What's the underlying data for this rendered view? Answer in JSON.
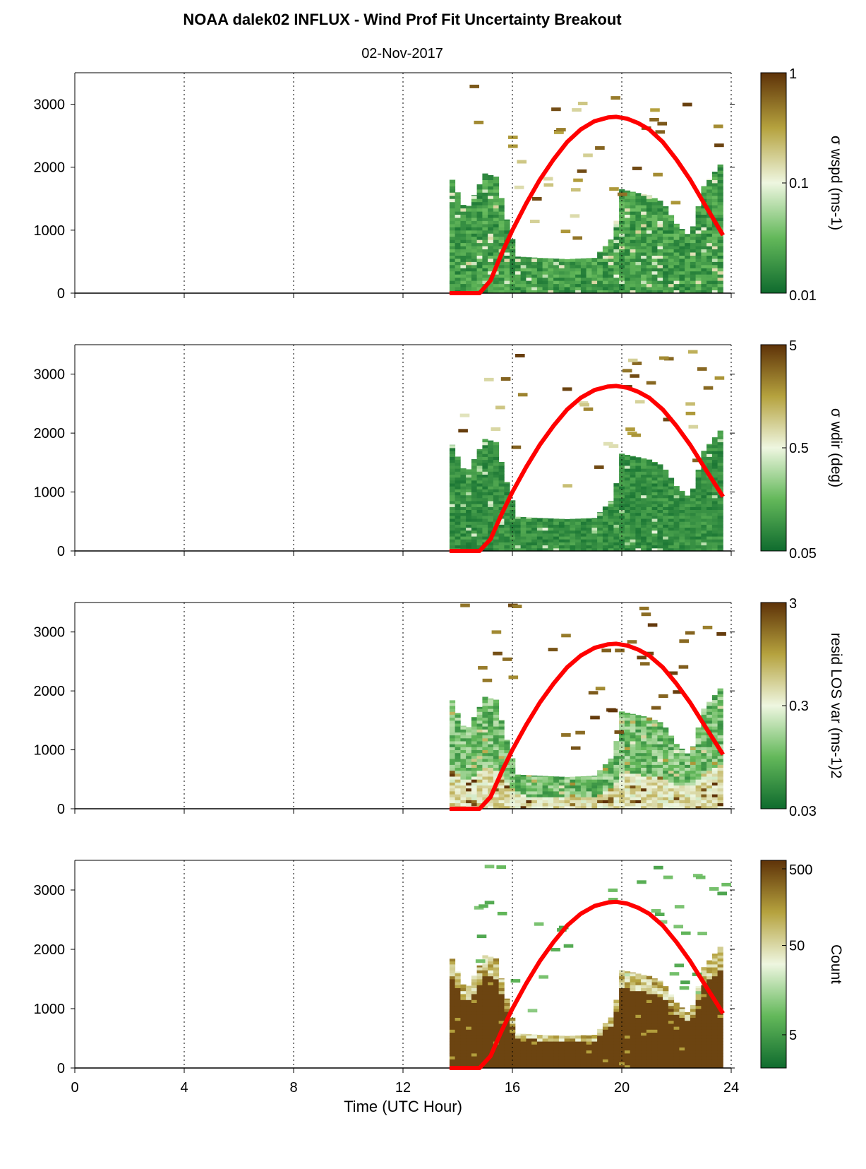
{
  "title": "NOAA dalek02 INFLUX - Wind Prof Fit Uncertainty Breakout",
  "subtitle": "02-Nov-2017",
  "colors": {
    "boundary_line": "#ff0000",
    "cmap_low": "#0f6b2e",
    "cmap_mid_low": "#63b85a",
    "cmap_mid": "#eef6e0",
    "cmap_mid_high": "#b5a23e",
    "cmap_high": "#5e3208"
  },
  "chart_data": {
    "type": "heatmap",
    "shared_x": {
      "label": "Time (UTC Hour)",
      "range": [
        0,
        24
      ],
      "ticks": [
        "0",
        "4",
        "8",
        "12",
        "16",
        "20",
        "24"
      ],
      "grid_lines_at": [
        4,
        8,
        12,
        16,
        20,
        24
      ],
      "grid": "dotted vertical"
    },
    "shared_y": {
      "range": [
        0,
        3500
      ],
      "ticks": [
        "0",
        "1000",
        "2000",
        "3000"
      ]
    },
    "data_start_hour": 13.7,
    "data_end_hour": 23.7,
    "boundary_line": {
      "description": "red curve",
      "x": [
        13.7,
        14.5,
        14.8,
        15.2,
        15.6,
        16.0,
        16.5,
        17.0,
        17.5,
        18.0,
        18.5,
        19.0,
        19.5,
        19.8,
        20.2,
        20.6,
        21.0,
        21.5,
        22.0,
        22.5,
        23.0,
        23.4,
        23.7
      ],
      "y": [
        0,
        0,
        0,
        200,
        620,
        1000,
        1420,
        1800,
        2120,
        2400,
        2600,
        2730,
        2790,
        2800,
        2770,
        2700,
        2600,
        2400,
        2120,
        1800,
        1430,
        1140,
        920
      ]
    },
    "panels": [
      {
        "colorbar_label": "σ wspd (ms-1)",
        "colorbar_scale": "log",
        "colorbar_ticks": [
          "1",
          "0.1",
          "0.01"
        ],
        "colorbar_range": [
          0.01,
          1
        ],
        "mixed_layer_x": [
          13.7,
          14.3,
          15.0,
          15.4,
          15.9,
          16.2,
          17.0,
          18.0,
          19.0,
          19.7,
          20.0,
          20.5,
          21.0,
          21.5,
          22.0,
          22.5,
          23.0,
          23.7
        ],
        "mixed_layer_top": [
          1900,
          1300,
          1900,
          1850,
          1000,
          580,
          560,
          540,
          560,
          900,
          1650,
          1600,
          1550,
          1450,
          1100,
          900,
          1700,
          2100
        ]
      },
      {
        "colorbar_label": "σ wdir (deg)",
        "colorbar_scale": "log",
        "colorbar_ticks": [
          "5",
          "0.5",
          "0.05"
        ],
        "colorbar_range": [
          0.05,
          5
        ],
        "mixed_layer_x": [
          13.7,
          14.3,
          15.0,
          15.4,
          15.9,
          16.2,
          17.0,
          18.0,
          19.0,
          19.7,
          20.0,
          20.5,
          21.0,
          21.5,
          22.0,
          22.5,
          23.0,
          23.7
        ],
        "mixed_layer_top": [
          1900,
          1300,
          1900,
          1850,
          1000,
          580,
          560,
          540,
          560,
          900,
          1650,
          1600,
          1550,
          1450,
          1100,
          900,
          1700,
          2100
        ]
      },
      {
        "colorbar_label": "resid LOS var (ms-1)2",
        "colorbar_scale": "log",
        "colorbar_ticks": [
          "3",
          "0.3",
          "0.03"
        ],
        "colorbar_range": [
          0.03,
          3
        ],
        "mixed_layer_x": [
          13.7,
          14.3,
          15.0,
          15.4,
          15.9,
          16.2,
          17.0,
          18.0,
          19.0,
          19.7,
          20.0,
          20.5,
          21.0,
          21.5,
          22.0,
          22.5,
          23.0,
          23.7
        ],
        "mixed_layer_top": [
          1950,
          1300,
          1900,
          1850,
          1000,
          580,
          560,
          540,
          560,
          900,
          1650,
          1600,
          1550,
          1450,
          1100,
          900,
          1700,
          2100
        ]
      },
      {
        "colorbar_label": "Count",
        "colorbar_scale": "log",
        "colorbar_ticks": [
          "500",
          "50",
          "5"
        ],
        "colorbar_range": [
          1,
          500
        ],
        "mixed_layer_x": [
          13.7,
          14.3,
          15.0,
          15.4,
          15.9,
          16.2,
          17.0,
          18.0,
          19.0,
          19.7,
          20.0,
          20.5,
          21.0,
          21.5,
          22.0,
          22.5,
          23.0,
          23.7
        ],
        "mixed_layer_top": [
          1950,
          1300,
          1900,
          1850,
          1000,
          580,
          560,
          540,
          560,
          900,
          1650,
          1600,
          1550,
          1450,
          1100,
          900,
          1700,
          2100
        ]
      }
    ]
  }
}
